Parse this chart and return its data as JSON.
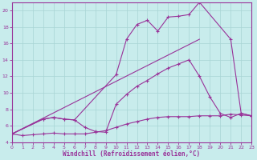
{
  "xlabel": "Windchill (Refroidissement éolien,°C)",
  "bg_color": "#c8ecec",
  "line_color": "#993399",
  "xlim": [
    0,
    23
  ],
  "ylim": [
    4,
    21
  ],
  "yticks": [
    4,
    6,
    8,
    10,
    12,
    14,
    16,
    18,
    20
  ],
  "xticks": [
    0,
    1,
    2,
    3,
    4,
    5,
    6,
    7,
    8,
    9,
    10,
    11,
    12,
    13,
    14,
    15,
    16,
    17,
    18,
    19,
    20,
    21,
    22,
    23
  ],
  "line1_x": [
    0,
    1,
    2,
    3,
    4,
    5,
    6,
    7,
    8,
    9,
    10,
    11,
    12,
    13,
    14,
    15,
    16,
    17,
    18,
    19,
    20,
    21,
    22,
    23
  ],
  "line1_y": [
    5.0,
    4.8,
    4.9,
    5.0,
    5.1,
    5.0,
    5.0,
    5.0,
    5.2,
    5.4,
    5.8,
    6.2,
    6.5,
    6.8,
    7.0,
    7.1,
    7.1,
    7.1,
    7.2,
    7.2,
    7.2,
    7.4,
    7.3,
    7.2
  ],
  "line2_x": [
    0,
    3,
    4,
    5,
    6,
    7,
    8,
    9,
    10,
    11,
    12,
    13,
    14,
    15,
    16,
    17,
    18,
    19,
    20,
    21,
    22,
    23
  ],
  "line2_y": [
    5.0,
    6.8,
    7.0,
    6.8,
    6.7,
    5.8,
    5.3,
    5.2,
    8.6,
    9.8,
    10.8,
    11.5,
    12.3,
    13.0,
    13.5,
    14.0,
    12.0,
    9.5,
    7.5,
    7.0,
    7.5,
    7.2
  ],
  "line3_x": [
    0,
    3,
    4,
    5,
    6,
    10,
    11,
    12,
    13,
    14,
    15,
    16,
    17,
    18,
    21,
    22,
    23
  ],
  "line3_y": [
    5.0,
    6.8,
    7.0,
    6.8,
    6.7,
    12.2,
    16.5,
    18.3,
    18.8,
    17.5,
    19.2,
    19.3,
    19.5,
    21.0,
    16.5,
    7.5,
    7.2
  ],
  "line4_x": [
    0,
    18
  ],
  "line4_y": [
    5.0,
    16.5
  ]
}
